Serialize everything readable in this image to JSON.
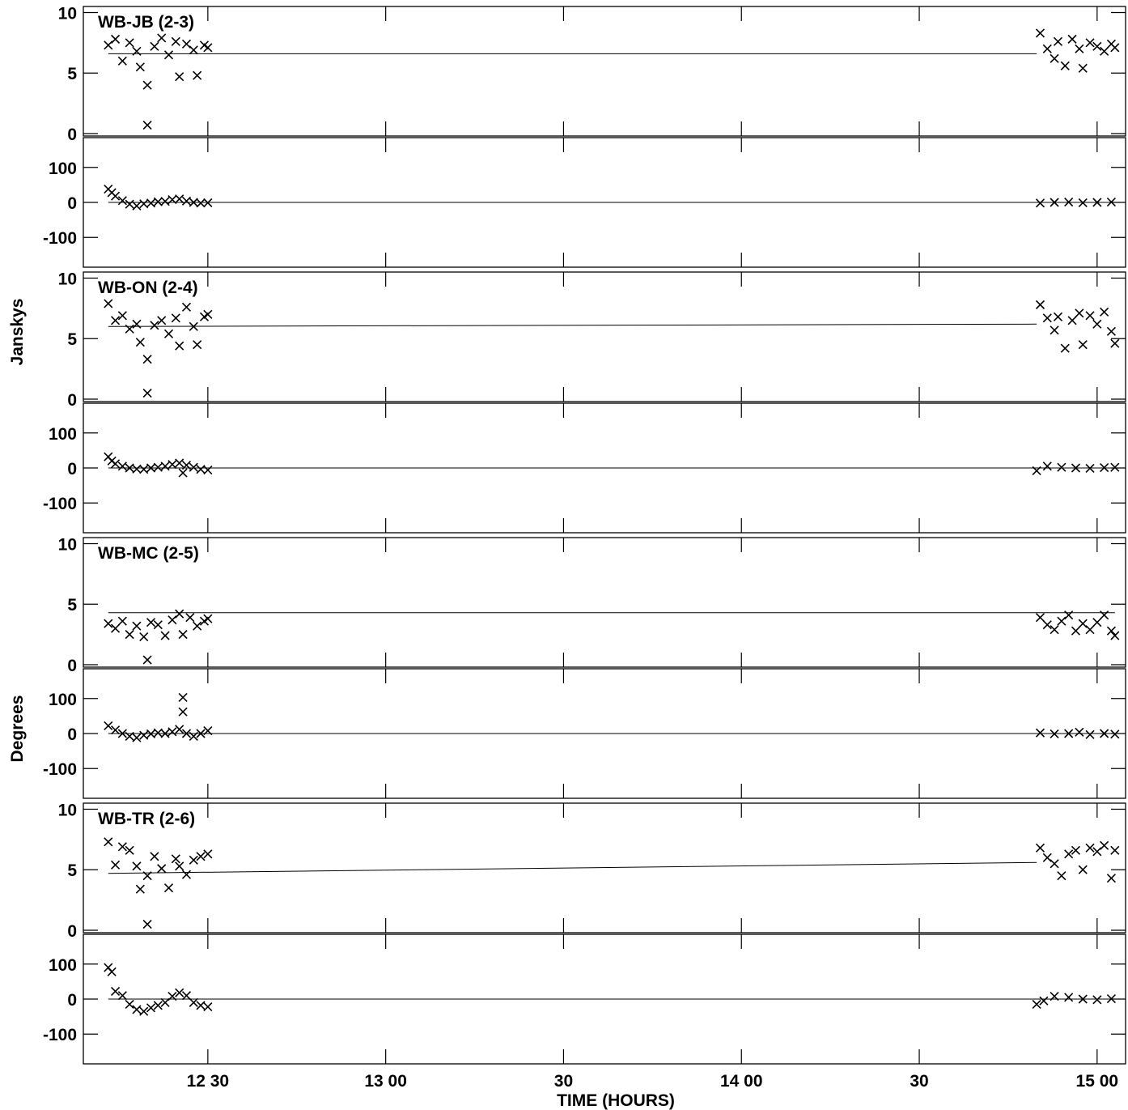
{
  "chart_data": {
    "type": "scatter",
    "x_axis": {
      "title": "TIME (HOURS)",
      "range_hours": [
        12.15,
        15.08
      ],
      "ticks": [
        {
          "value": 12.5,
          "label": "12 30"
        },
        {
          "value": 13.0,
          "label": "13 00"
        },
        {
          "value": 13.5,
          "label": "30"
        },
        {
          "value": 14.0,
          "label": "14 00"
        },
        {
          "value": 14.5,
          "label": "30"
        },
        {
          "value": 15.0,
          "label": "15 00"
        }
      ]
    },
    "ylabel_amplitude": "Janskys",
    "ylabel_phase": "Degrees",
    "amp_axis": {
      "range": [
        -0.2,
        10.5
      ],
      "ticks": [
        {
          "value": 0,
          "label": "0"
        },
        {
          "value": 5,
          "label": "5"
        },
        {
          "value": 10,
          "label": "10"
        }
      ]
    },
    "phase_axis": {
      "range": [
        -185,
        185
      ],
      "ticks": [
        {
          "value": 100,
          "label": "100"
        },
        {
          "value": 0,
          "label": "0"
        },
        {
          "value": -100,
          "label": "-100"
        }
      ]
    },
    "baselines": [
      {
        "label": "WB-JB (2-3)",
        "amplitude": {
          "model_line": [
            [
              12.22,
              6.6
            ],
            [
              14.83,
              6.6
            ]
          ],
          "points": [
            [
              12.22,
              7.3
            ],
            [
              12.24,
              7.8
            ],
            [
              12.26,
              6.0
            ],
            [
              12.28,
              7.5
            ],
            [
              12.3,
              6.8
            ],
            [
              12.31,
              5.5
            ],
            [
              12.33,
              4.0
            ],
            [
              12.35,
              7.2
            ],
            [
              12.37,
              7.9
            ],
            [
              12.39,
              6.5
            ],
            [
              12.41,
              7.6
            ],
            [
              12.42,
              4.7
            ],
            [
              12.44,
              7.4
            ],
            [
              12.46,
              6.9
            ],
            [
              12.47,
              4.8
            ],
            [
              12.49,
              7.3
            ],
            [
              12.5,
              7.1
            ],
            [
              12.33,
              0.7
            ],
            [
              14.84,
              8.3
            ],
            [
              14.86,
              7.0
            ],
            [
              14.88,
              6.2
            ],
            [
              14.89,
              7.6
            ],
            [
              14.91,
              5.6
            ],
            [
              14.93,
              7.8
            ],
            [
              14.95,
              7.0
            ],
            [
              14.96,
              5.4
            ],
            [
              14.98,
              7.5
            ],
            [
              15.0,
              7.2
            ],
            [
              15.02,
              6.8
            ],
            [
              15.04,
              7.4
            ],
            [
              15.05,
              7.1
            ]
          ]
        },
        "phase": {
          "model_line": [
            [
              12.22,
              0
            ],
            [
              15.05,
              0
            ]
          ],
          "points": [
            [
              12.22,
              38
            ],
            [
              12.23,
              28
            ],
            [
              12.24,
              18
            ],
            [
              12.26,
              5
            ],
            [
              12.28,
              -5
            ],
            [
              12.3,
              -10
            ],
            [
              12.32,
              -4
            ],
            [
              12.34,
              -2
            ],
            [
              12.36,
              2
            ],
            [
              12.38,
              3
            ],
            [
              12.4,
              8
            ],
            [
              12.42,
              10
            ],
            [
              12.44,
              4
            ],
            [
              12.46,
              0
            ],
            [
              12.48,
              -2
            ],
            [
              12.5,
              -1
            ],
            [
              14.84,
              -2
            ],
            [
              14.88,
              0
            ],
            [
              14.92,
              1
            ],
            [
              14.96,
              -1
            ],
            [
              15.0,
              0
            ],
            [
              15.04,
              1
            ]
          ]
        }
      },
      {
        "label": "WB-ON (2-4)",
        "amplitude": {
          "model_line": [
            [
              12.22,
              6.0
            ],
            [
              14.83,
              6.2
            ]
          ],
          "points": [
            [
              12.22,
              7.9
            ],
            [
              12.24,
              6.5
            ],
            [
              12.26,
              6.9
            ],
            [
              12.28,
              5.8
            ],
            [
              12.3,
              6.2
            ],
            [
              12.31,
              4.7
            ],
            [
              12.33,
              3.3
            ],
            [
              12.35,
              6.1
            ],
            [
              12.37,
              6.5
            ],
            [
              12.39,
              5.4
            ],
            [
              12.41,
              6.7
            ],
            [
              12.42,
              4.4
            ],
            [
              12.44,
              7.6
            ],
            [
              12.46,
              6.0
            ],
            [
              12.47,
              4.5
            ],
            [
              12.49,
              6.8
            ],
            [
              12.5,
              7.0
            ],
            [
              12.33,
              0.5
            ],
            [
              14.84,
              7.8
            ],
            [
              14.86,
              6.7
            ],
            [
              14.88,
              5.7
            ],
            [
              14.89,
              6.8
            ],
            [
              14.91,
              4.2
            ],
            [
              14.93,
              6.5
            ],
            [
              14.95,
              7.1
            ],
            [
              14.96,
              4.5
            ],
            [
              14.98,
              6.9
            ],
            [
              15.0,
              6.2
            ],
            [
              15.02,
              7.2
            ],
            [
              15.04,
              5.6
            ],
            [
              15.05,
              4.6
            ]
          ]
        },
        "phase": {
          "model_line": [
            [
              12.22,
              0
            ],
            [
              15.05,
              0
            ]
          ],
          "points": [
            [
              12.22,
              32
            ],
            [
              12.23,
              20
            ],
            [
              12.24,
              12
            ],
            [
              12.26,
              5
            ],
            [
              12.28,
              0
            ],
            [
              12.3,
              -3
            ],
            [
              12.32,
              -4
            ],
            [
              12.34,
              0
            ],
            [
              12.36,
              2
            ],
            [
              12.38,
              5
            ],
            [
              12.4,
              10
            ],
            [
              12.42,
              14
            ],
            [
              12.43,
              -14
            ],
            [
              12.44,
              8
            ],
            [
              12.46,
              2
            ],
            [
              12.48,
              -4
            ],
            [
              12.5,
              -6
            ],
            [
              14.83,
              -8
            ],
            [
              14.86,
              5
            ],
            [
              14.9,
              2
            ],
            [
              14.94,
              0
            ],
            [
              14.98,
              -1
            ],
            [
              15.02,
              1
            ],
            [
              15.05,
              2
            ]
          ]
        }
      },
      {
        "label": "WB-MC (2-5)",
        "amplitude": {
          "model_line": [
            [
              12.22,
              4.3
            ],
            [
              15.05,
              4.3
            ]
          ],
          "points": [
            [
              12.22,
              3.4
            ],
            [
              12.24,
              3.0
            ],
            [
              12.26,
              3.6
            ],
            [
              12.28,
              2.5
            ],
            [
              12.3,
              3.2
            ],
            [
              12.32,
              2.3
            ],
            [
              12.34,
              3.5
            ],
            [
              12.36,
              3.3
            ],
            [
              12.38,
              2.4
            ],
            [
              12.4,
              3.7
            ],
            [
              12.42,
              4.2
            ],
            [
              12.43,
              2.5
            ],
            [
              12.45,
              3.9
            ],
            [
              12.47,
              3.2
            ],
            [
              12.49,
              3.6
            ],
            [
              12.5,
              3.8
            ],
            [
              12.33,
              0.4
            ],
            [
              14.84,
              3.9
            ],
            [
              14.86,
              3.3
            ],
            [
              14.88,
              2.9
            ],
            [
              14.9,
              3.6
            ],
            [
              14.92,
              4.1
            ],
            [
              14.94,
              2.8
            ],
            [
              14.96,
              3.4
            ],
            [
              14.98,
              2.9
            ],
            [
              15.0,
              3.5
            ],
            [
              15.02,
              4.1
            ],
            [
              15.04,
              2.8
            ],
            [
              15.05,
              2.4
            ]
          ]
        },
        "phase": {
          "model_line": [
            [
              12.22,
              0
            ],
            [
              15.05,
              0
            ]
          ],
          "points": [
            [
              12.22,
              22
            ],
            [
              12.24,
              10
            ],
            [
              12.26,
              0
            ],
            [
              12.28,
              -8
            ],
            [
              12.3,
              -12
            ],
            [
              12.32,
              -5
            ],
            [
              12.34,
              -1
            ],
            [
              12.36,
              2
            ],
            [
              12.38,
              0
            ],
            [
              12.4,
              5
            ],
            [
              12.42,
              12
            ],
            [
              12.43,
              103
            ],
            [
              12.43,
              62
            ],
            [
              12.44,
              0
            ],
            [
              12.46,
              -8
            ],
            [
              12.48,
              0
            ],
            [
              12.5,
              8
            ],
            [
              14.84,
              2
            ],
            [
              14.88,
              -1
            ],
            [
              14.92,
              0
            ],
            [
              14.95,
              4
            ],
            [
              14.98,
              -3
            ],
            [
              15.02,
              0
            ],
            [
              15.05,
              -2
            ]
          ]
        }
      },
      {
        "label": "WB-TR (2-6)",
        "amplitude": {
          "model_line": [
            [
              12.22,
              4.7
            ],
            [
              14.83,
              5.6
            ]
          ],
          "points": [
            [
              12.22,
              7.3
            ],
            [
              12.24,
              5.4
            ],
            [
              12.26,
              6.9
            ],
            [
              12.28,
              6.6
            ],
            [
              12.3,
              5.3
            ],
            [
              12.31,
              3.4
            ],
            [
              12.33,
              4.5
            ],
            [
              12.35,
              6.1
            ],
            [
              12.37,
              5.1
            ],
            [
              12.39,
              3.5
            ],
            [
              12.41,
              5.9
            ],
            [
              12.42,
              5.3
            ],
            [
              12.44,
              4.6
            ],
            [
              12.46,
              5.8
            ],
            [
              12.48,
              6.1
            ],
            [
              12.5,
              6.3
            ],
            [
              12.33,
              0.5
            ],
            [
              14.84,
              6.8
            ],
            [
              14.86,
              6.0
            ],
            [
              14.88,
              5.5
            ],
            [
              14.9,
              4.5
            ],
            [
              14.92,
              6.3
            ],
            [
              14.94,
              6.6
            ],
            [
              14.96,
              5.0
            ],
            [
              14.98,
              6.8
            ],
            [
              15.0,
              6.5
            ],
            [
              15.02,
              7.0
            ],
            [
              15.04,
              4.3
            ],
            [
              15.05,
              6.6
            ]
          ]
        },
        "phase": {
          "model_line": [
            [
              12.22,
              0
            ],
            [
              15.05,
              0
            ]
          ],
          "points": [
            [
              12.22,
              90
            ],
            [
              12.23,
              78
            ],
            [
              12.24,
              22
            ],
            [
              12.26,
              10
            ],
            [
              12.28,
              -15
            ],
            [
              12.3,
              -30
            ],
            [
              12.32,
              -35
            ],
            [
              12.34,
              -25
            ],
            [
              12.36,
              -18
            ],
            [
              12.38,
              -10
            ],
            [
              12.4,
              8
            ],
            [
              12.42,
              18
            ],
            [
              12.44,
              10
            ],
            [
              12.46,
              -10
            ],
            [
              12.48,
              -18
            ],
            [
              12.5,
              -22
            ],
            [
              14.83,
              -15
            ],
            [
              14.85,
              -5
            ],
            [
              14.88,
              8
            ],
            [
              14.92,
              5
            ],
            [
              14.96,
              0
            ],
            [
              15.0,
              -2
            ],
            [
              15.04,
              1
            ]
          ]
        }
      }
    ]
  }
}
